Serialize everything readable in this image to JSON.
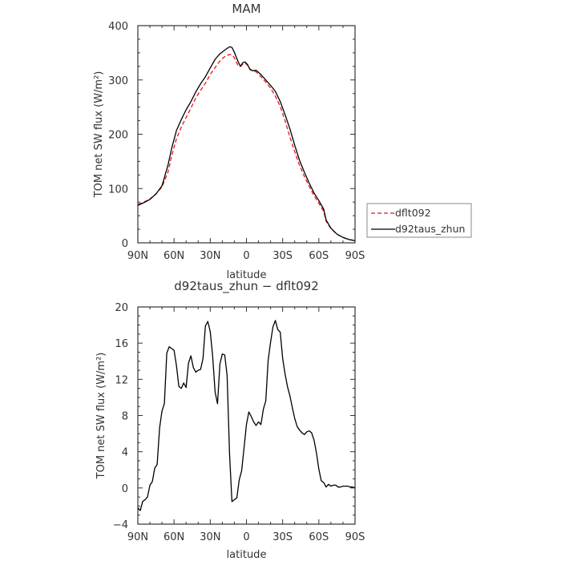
{
  "chart_data": [
    {
      "type": "line",
      "title": "MAM",
      "xlabel": "latitude",
      "ylabel": "TOM net SW flux (W/m²)",
      "ylim": [
        0,
        400
      ],
      "xlim": [
        90,
        -90
      ],
      "xticks": [
        90,
        60,
        30,
        0,
        -30,
        -60,
        -90
      ],
      "xtick_labels": [
        "90N",
        "60N",
        "30N",
        "0",
        "30S",
        "60S",
        "90S"
      ],
      "yticks": [
        0,
        100,
        200,
        300,
        400
      ],
      "ytick_labels": [
        "0",
        "100",
        "200",
        "300",
        "400"
      ],
      "legend_position": "right",
      "grid": false,
      "series": [
        {
          "name": "dflt092",
          "color": "#e8141c",
          "style": "dashed",
          "x": [
            90,
            85,
            80,
            75,
            70,
            65,
            62,
            58,
            54,
            50,
            46,
            42,
            38,
            34,
            30,
            26,
            22,
            18,
            14,
            12,
            10,
            7,
            5,
            3,
            1,
            -1,
            -3,
            -5,
            -8,
            -12,
            -16,
            -20,
            -24,
            -28,
            -32,
            -36,
            -40,
            -44,
            -48,
            -52,
            -56,
            -60,
            -64,
            -66,
            -70,
            -75,
            -80,
            -85,
            -90
          ],
          "y": [
            71,
            75,
            81,
            90,
            103,
            130,
            160,
            192,
            213,
            231,
            248,
            267,
            281,
            294,
            310,
            323,
            335,
            343,
            347,
            346,
            341,
            326,
            325,
            329,
            331,
            327,
            320,
            317,
            315,
            306,
            296,
            285,
            270,
            251,
            225,
            195,
            168,
            143,
            122,
            104,
            87,
            73,
            58,
            40,
            26,
            16,
            10,
            6,
            4
          ]
        },
        {
          "name": "d92taus_zhun",
          "color": "#000000",
          "style": "solid",
          "x": [
            90,
            85,
            80,
            75,
            70,
            65,
            62,
            58,
            54,
            50,
            46,
            42,
            38,
            34,
            30,
            26,
            22,
            18,
            14,
            12,
            10,
            7,
            5,
            3,
            1,
            -1,
            -3,
            -5,
            -8,
            -12,
            -16,
            -20,
            -24,
            -28,
            -32,
            -36,
            -40,
            -44,
            -48,
            -52,
            -56,
            -60,
            -64,
            -66,
            -70,
            -75,
            -80,
            -85,
            -90
          ],
          "y": [
            69,
            74,
            80,
            90,
            105,
            143,
            174,
            207,
            227,
            245,
            260,
            278,
            293,
            306,
            322,
            338,
            348,
            355,
            361,
            360,
            351,
            334,
            325,
            332,
            333,
            328,
            319,
            317,
            318,
            310,
            300,
            290,
            279,
            260,
            236,
            210,
            180,
            152,
            130,
            110,
            92,
            78,
            62,
            42,
            27,
            16,
            10,
            6,
            4
          ]
        }
      ]
    },
    {
      "type": "line",
      "title": "d92taus_zhun − dflt092",
      "xlabel": "latitude",
      "ylabel": "TOM net SW flux (W/m²)",
      "ylim": [
        -4,
        20
      ],
      "xlim": [
        90,
        -90
      ],
      "xticks": [
        90,
        60,
        30,
        0,
        -30,
        -60,
        -90
      ],
      "xtick_labels": [
        "90N",
        "60N",
        "30N",
        "0",
        "30S",
        "60S",
        "90S"
      ],
      "yticks": [
        -4,
        0,
        4,
        8,
        12,
        16,
        20
      ],
      "ytick_labels": [
        "−4",
        "0",
        "4",
        "8",
        "12",
        "16",
        "20"
      ],
      "grid": false,
      "series": [
        {
          "color": "#000000",
          "style": "solid",
          "x": [
            90,
            88,
            86,
            84,
            82,
            80,
            78,
            76,
            74,
            72,
            70,
            68,
            66,
            64,
            62,
            60,
            58,
            56,
            54,
            52,
            50,
            48,
            46,
            44,
            42,
            40,
            38,
            36,
            34,
            32,
            30,
            28,
            26,
            24,
            22,
            20,
            18,
            16,
            14,
            12,
            10,
            8,
            6,
            4,
            2,
            0,
            -2,
            -4,
            -6,
            -8,
            -10,
            -12,
            -14,
            -16,
            -18,
            -20,
            -22,
            -24,
            -26,
            -28,
            -30,
            -32,
            -34,
            -36,
            -38,
            -40,
            -42,
            -44,
            -46,
            -48,
            -50,
            -52,
            -54,
            -56,
            -58,
            -60,
            -62,
            -64,
            -66,
            -68,
            -70,
            -72,
            -74,
            -76,
            -78,
            -80,
            -82,
            -84,
            -86,
            -88,
            -90
          ],
          "y": [
            -2.2,
            -2.5,
            -1.5,
            -1.3,
            -1.0,
            0.3,
            0.7,
            2.2,
            2.6,
            6.6,
            8.5,
            9.3,
            14.9,
            15.6,
            15.4,
            15.2,
            13.5,
            11.2,
            11.0,
            11.6,
            11.1,
            13.8,
            14.6,
            13.3,
            12.8,
            13.0,
            13.1,
            14.3,
            17.9,
            18.4,
            17.3,
            14.6,
            10.6,
            9.3,
            13.7,
            14.8,
            14.7,
            12.4,
            3.8,
            -1.5,
            -1.3,
            -1.1,
            0.9,
            1.9,
            4.4,
            7.0,
            8.4,
            7.9,
            7.3,
            6.9,
            7.3,
            7.0,
            8.7,
            9.6,
            14.1,
            16.1,
            17.8,
            18.5,
            17.5,
            17.2,
            14.3,
            12.6,
            11.2,
            10.2,
            8.9,
            7.7,
            6.8,
            6.4,
            6.1,
            5.9,
            6.2,
            6.3,
            6.1,
            5.3,
            3.9,
            2.1,
            0.8,
            0.6,
            0.1,
            0.4,
            0.2,
            0.3,
            0.3,
            0.1,
            0.1,
            0.2,
            0.2,
            0.2,
            0.1,
            0.1,
            0.0
          ]
        }
      ]
    }
  ]
}
